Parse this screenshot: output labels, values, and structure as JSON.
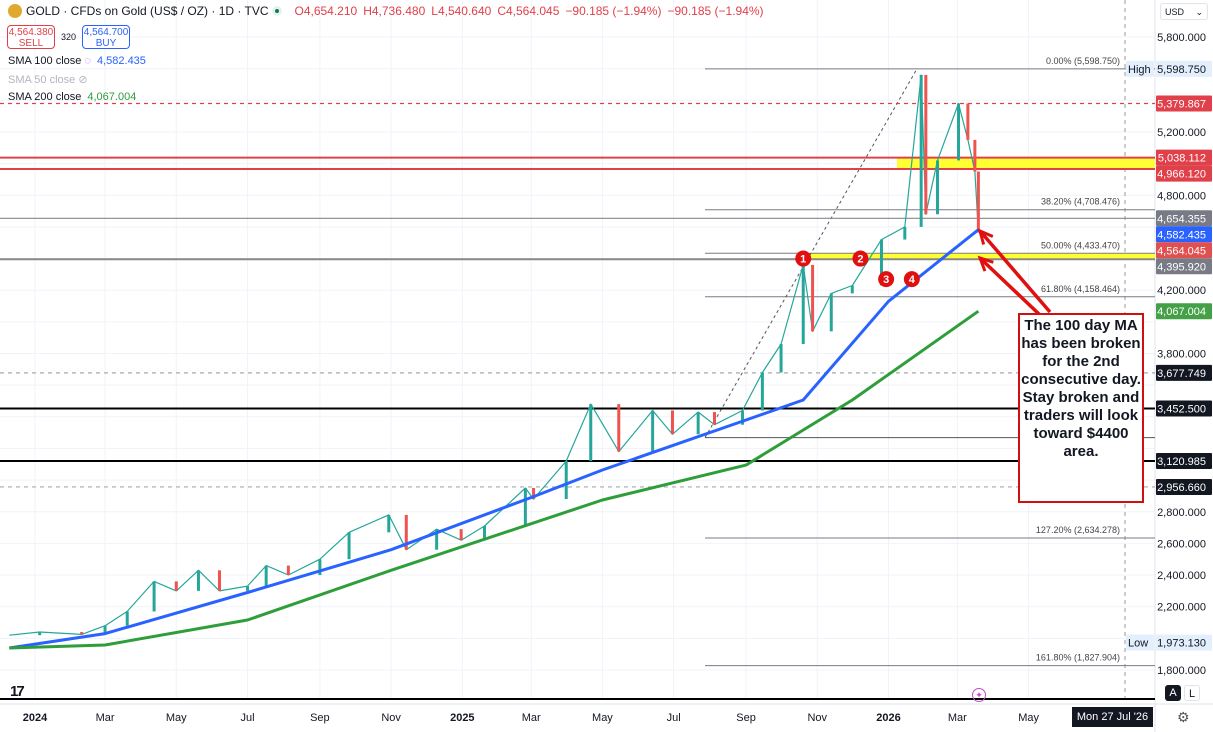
{
  "header": {
    "symbol": "GOLD · CFDs on Gold (US$ / OZ) · 1D · TVC",
    "open": "O4,654.210",
    "high": "H4,736.480",
    "low": "L4,540.640",
    "close": "C4,564.045",
    "change": "−90.185 (−1.94%)",
    "change2": "−90.185 (−1.94%)"
  },
  "trade": {
    "sell_price": "4,564.380",
    "sell_label": "SELL",
    "spread": "320",
    "buy_price": "4,564.700",
    "buy_label": "BUY"
  },
  "indicators": [
    {
      "label": "SMA 100 close",
      "value": "4,582.435",
      "color": "#2962ff"
    },
    {
      "label": "SMA 50 close",
      "value": "",
      "hidden": true
    },
    {
      "label": "SMA 200 close",
      "value": "4,067.004",
      "color": "#2e9e3a"
    }
  ],
  "currency": "USD",
  "annotation": "The 100 day MA has been broken for the 2nd consecutive day. Stay broken and traders will look toward $4400 area.",
  "bottom": {
    "auto": "A",
    "log": "L",
    "crosshair_date": "Mon 27 Jul '26"
  },
  "chart_data": {
    "type": "line",
    "ylim": [
      1700,
      5900
    ],
    "y_ticks": [
      1800,
      2000,
      2200,
      2400,
      2600,
      2800,
      3000,
      3200,
      3400,
      3600,
      3800,
      4000,
      4200,
      4400,
      4600,
      4800,
      5000,
      5200,
      5400,
      5600,
      5800
    ],
    "x_ticks": [
      {
        "label": "2024",
        "date": "2024-01-01"
      },
      {
        "label": "Mar",
        "date": "2024-03-01"
      },
      {
        "label": "May",
        "date": "2024-05-01"
      },
      {
        "label": "Jul",
        "date": "2024-07-01"
      },
      {
        "label": "Sep",
        "date": "2024-09-01"
      },
      {
        "label": "Nov",
        "date": "2024-11-01"
      },
      {
        "label": "2025",
        "date": "2025-01-01"
      },
      {
        "label": "Mar",
        "date": "2025-03-01"
      },
      {
        "label": "May",
        "date": "2025-05-01"
      },
      {
        "label": "Jul",
        "date": "2025-07-01"
      },
      {
        "label": "Sep",
        "date": "2025-09-01"
      },
      {
        "label": "Nov",
        "date": "2025-11-01"
      },
      {
        "label": "2026",
        "date": "2026-01-01"
      },
      {
        "label": "Mar",
        "date": "2026-03-01"
      },
      {
        "label": "May",
        "date": "2026-05-01"
      }
    ],
    "series": [
      {
        "key": "price",
        "color": "#26a69a",
        "points": [
          [
            "2023-12-10",
            2020
          ],
          [
            "2024-01-05",
            2040
          ],
          [
            "2024-02-10",
            2025
          ],
          [
            "2024-03-01",
            2080
          ],
          [
            "2024-03-20",
            2170
          ],
          [
            "2024-04-12",
            2360
          ],
          [
            "2024-05-01",
            2300
          ],
          [
            "2024-05-20",
            2430
          ],
          [
            "2024-06-07",
            2300
          ],
          [
            "2024-07-01",
            2330
          ],
          [
            "2024-07-17",
            2460
          ],
          [
            "2024-08-05",
            2400
          ],
          [
            "2024-09-01",
            2500
          ],
          [
            "2024-09-26",
            2670
          ],
          [
            "2024-10-30",
            2780
          ],
          [
            "2024-11-14",
            2560
          ],
          [
            "2024-12-10",
            2690
          ],
          [
            "2024-12-31",
            2620
          ],
          [
            "2025-01-20",
            2710
          ],
          [
            "2025-02-24",
            2950
          ],
          [
            "2025-03-03",
            2880
          ],
          [
            "2025-03-31",
            3120
          ],
          [
            "2025-04-21",
            3480
          ],
          [
            "2025-05-15",
            3180
          ],
          [
            "2025-06-13",
            3440
          ],
          [
            "2025-06-30",
            3290
          ],
          [
            "2025-07-22",
            3430
          ],
          [
            "2025-08-05",
            3350
          ],
          [
            "2025-08-29",
            3440
          ],
          [
            "2025-09-15",
            3680
          ],
          [
            "2025-10-01",
            3860
          ],
          [
            "2025-10-20",
            4360
          ],
          [
            "2025-10-28",
            3940
          ],
          [
            "2025-11-13",
            4180
          ],
          [
            "2025-12-01",
            4230
          ],
          [
            "2025-12-26",
            4520
          ],
          [
            "2026-01-15",
            4600
          ],
          [
            "2026-01-29",
            5560
          ],
          [
            "2026-02-02",
            4680
          ],
          [
            "2026-02-12",
            5020
          ],
          [
            "2026-03-02",
            5380
          ],
          [
            "2026-03-10",
            5150
          ],
          [
            "2026-03-16",
            4950
          ],
          [
            "2026-03-19",
            4564.045
          ]
        ]
      },
      {
        "key": "sma100",
        "name": "SMA 100 close",
        "color": "#2962ff",
        "points": [
          [
            "2023-12-10",
            1939
          ],
          [
            "2024-03-01",
            2030
          ],
          [
            "2024-07-01",
            2290
          ],
          [
            "2024-11-01",
            2560
          ],
          [
            "2025-03-01",
            2890
          ],
          [
            "2025-05-01",
            3064
          ],
          [
            "2025-09-01",
            3380
          ],
          [
            "2025-10-20",
            3506
          ],
          [
            "2026-01-01",
            4130
          ],
          [
            "2026-03-19",
            4582.435
          ]
        ]
      },
      {
        "key": "sma200",
        "name": "SMA 200 close",
        "color": "#2e9e3a",
        "points": [
          [
            "2023-12-10",
            1939
          ],
          [
            "2024-03-01",
            1958
          ],
          [
            "2024-07-01",
            2116
          ],
          [
            "2024-11-01",
            2430
          ],
          [
            "2025-05-01",
            2874
          ],
          [
            "2025-09-01",
            3095
          ],
          [
            "2025-12-01",
            3506
          ],
          [
            "2026-03-19",
            4067.004
          ]
        ]
      }
    ],
    "levels": [
      {
        "value": 5379.867,
        "style": "dashed",
        "color": "#e0404a",
        "tag": "5,379.867",
        "tag_color": "#e0404a"
      },
      {
        "value": 5038.112,
        "style": "solid",
        "color": "#e0404a",
        "tag": "5,038.112",
        "tag_color": "#e0404a"
      },
      {
        "value": 4966.12,
        "style": "solid",
        "color": "#e0404a",
        "tag": "4,966.120",
        "tag_color": "#e0404a"
      },
      {
        "value": 4654.355,
        "style": "solid",
        "color": "#888888",
        "tag": "4,654.355",
        "tag_color": "#787b86"
      },
      {
        "value": 4582.435,
        "style": "none",
        "tag": "4,582.435",
        "tag_color": "#2962ff"
      },
      {
        "value": 4564.045,
        "style": "none",
        "tag": "4,564.045",
        "tag_color": "#e05050"
      },
      {
        "value": 4395.92,
        "style": "thick",
        "color": "#888888",
        "tag": "4,395.920",
        "tag_color": "#787b86"
      },
      {
        "value": 4067.004,
        "style": "none",
        "tag": "4,067.004",
        "tag_color": "#43a047"
      },
      {
        "value": 3677.749,
        "style": "dashed",
        "color": "#aaaaaa",
        "tag": "3,677.749",
        "tag_color": "#131722"
      },
      {
        "value": 3452.5,
        "style": "thick",
        "color": "#000000",
        "tag": "3,452.500",
        "tag_color": "#131722"
      },
      {
        "value": 3120.985,
        "style": "thick",
        "color": "#000000",
        "tag": "3,120.985",
        "tag_color": "#131722"
      },
      {
        "value": 2956.66,
        "style": "dashed",
        "color": "#aaaaaa",
        "tag": "2,956.660",
        "tag_color": "#131722"
      }
    ],
    "high": {
      "label": "High",
      "value": "5,598.750"
    },
    "low": {
      "label": "Low",
      "value": "1,973.130"
    },
    "fib": [
      {
        "label": "0.00% (5,598.750)",
        "value": 5598.75
      },
      {
        "label": "38.20% (4,708.476)",
        "value": 4708.476
      },
      {
        "label": "50.00% (4,433.470)",
        "value": 4433.47
      },
      {
        "label": "61.80% (4,158.464)",
        "value": 4158.464
      },
      {
        "label": "",
        "value": 3268.19
      },
      {
        "label": "127.20% (2,634.278)",
        "value": 2634.278
      },
      {
        "label": "161.80% (1,827.904)",
        "value": 1827.904
      }
    ],
    "zones": [
      {
        "from": 4966.12,
        "to": 5038.112,
        "color": "#ffff33"
      },
      {
        "from": 4395.92,
        "to": 4433.47,
        "color": "#ffff33"
      }
    ],
    "markers": [
      {
        "label": "1",
        "date": "2025-10-20",
        "value": 4400
      },
      {
        "label": "2",
        "date": "2025-12-08",
        "value": 4400
      },
      {
        "label": "3",
        "date": "2025-12-30",
        "value": 4270
      },
      {
        "label": "4",
        "date": "2026-01-21",
        "value": 4270
      }
    ]
  }
}
